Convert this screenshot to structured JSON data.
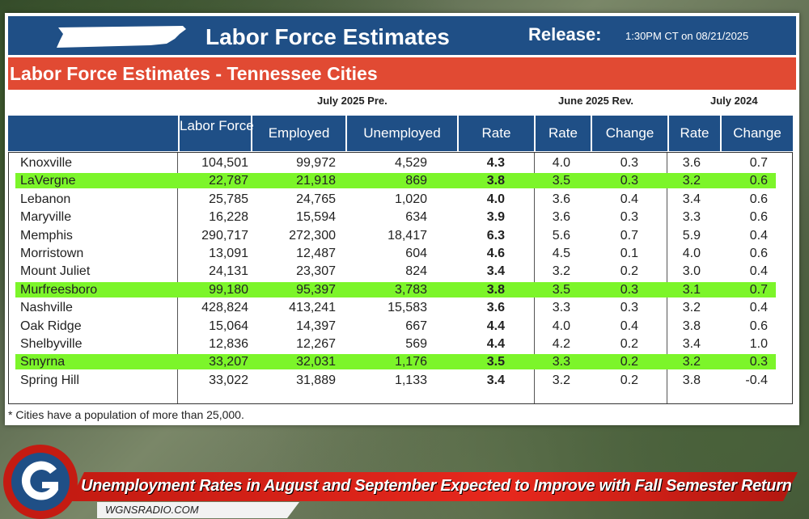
{
  "header": {
    "title": "Labor Force Estimates",
    "release_label": "Release:",
    "release_time": "1:30PM CT on  08/21/2025"
  },
  "subheader": {
    "title": "Labor Force Estimates - Tennessee Cities"
  },
  "groups": {
    "july2025": "July 2025 Pre.",
    "june2025": "June 2025 Rev.",
    "july2024": "July 2024"
  },
  "columns": [
    "Labor Force",
    "Employed",
    "Unemployed",
    "Rate",
    "Rate",
    "Change",
    "Rate",
    "Change"
  ],
  "rows": [
    {
      "city": "Knoxville",
      "labor": "104,501",
      "employed": "99,972",
      "unemployed": "4,529",
      "rate": "4.3",
      "jun_rate": "4.0",
      "jun_change": "0.3",
      "y24_rate": "3.6",
      "y24_change": "0.7",
      "highlight": false
    },
    {
      "city": "LaVergne",
      "labor": "22,787",
      "employed": "21,918",
      "unemployed": "869",
      "rate": "3.8",
      "jun_rate": "3.5",
      "jun_change": "0.3",
      "y24_rate": "3.2",
      "y24_change": "0.6",
      "highlight": true
    },
    {
      "city": "Lebanon",
      "labor": "25,785",
      "employed": "24,765",
      "unemployed": "1,020",
      "rate": "4.0",
      "jun_rate": "3.6",
      "jun_change": "0.4",
      "y24_rate": "3.4",
      "y24_change": "0.6",
      "highlight": false
    },
    {
      "city": "Maryville",
      "labor": "16,228",
      "employed": "15,594",
      "unemployed": "634",
      "rate": "3.9",
      "jun_rate": "3.6",
      "jun_change": "0.3",
      "y24_rate": "3.3",
      "y24_change": "0.6",
      "highlight": false
    },
    {
      "city": "Memphis",
      "labor": "290,717",
      "employed": "272,300",
      "unemployed": "18,417",
      "rate": "6.3",
      "jun_rate": "5.6",
      "jun_change": "0.7",
      "y24_rate": "5.9",
      "y24_change": "0.4",
      "highlight": false
    },
    {
      "city": "Morristown",
      "labor": "13,091",
      "employed": "12,487",
      "unemployed": "604",
      "rate": "4.6",
      "jun_rate": "4.5",
      "jun_change": "0.1",
      "y24_rate": "4.0",
      "y24_change": "0.6",
      "highlight": false
    },
    {
      "city": "Mount Juliet",
      "labor": "24,131",
      "employed": "23,307",
      "unemployed": "824",
      "rate": "3.4",
      "jun_rate": "3.2",
      "jun_change": "0.2",
      "y24_rate": "3.0",
      "y24_change": "0.4",
      "highlight": false
    },
    {
      "city": "Murfreesboro",
      "labor": "99,180",
      "employed": "95,397",
      "unemployed": "3,783",
      "rate": "3.8",
      "jun_rate": "3.5",
      "jun_change": "0.3",
      "y24_rate": "3.1",
      "y24_change": "0.7",
      "highlight": true
    },
    {
      "city": "Nashville",
      "labor": "428,824",
      "employed": "413,241",
      "unemployed": "15,583",
      "rate": "3.6",
      "jun_rate": "3.3",
      "jun_change": "0.3",
      "y24_rate": "3.2",
      "y24_change": "0.4",
      "highlight": false
    },
    {
      "city": "Oak Ridge",
      "labor": "15,064",
      "employed": "14,397",
      "unemployed": "667",
      "rate": "4.4",
      "jun_rate": "4.0",
      "jun_change": "0.4",
      "y24_rate": "3.8",
      "y24_change": "0.6",
      "highlight": false
    },
    {
      "city": "Shelbyville",
      "labor": "12,836",
      "employed": "12,267",
      "unemployed": "569",
      "rate": "4.4",
      "jun_rate": "4.2",
      "jun_change": "0.2",
      "y24_rate": "3.4",
      "y24_change": "1.0",
      "highlight": false
    },
    {
      "city": "Smyrna",
      "labor": "33,207",
      "employed": "32,031",
      "unemployed": "1,176",
      "rate": "3.5",
      "jun_rate": "3.3",
      "jun_change": "0.2",
      "y24_rate": "3.2",
      "y24_change": "0.3",
      "highlight": true
    },
    {
      "city": "Spring Hill",
      "labor": "33,022",
      "employed": "31,889",
      "unemployed": "1,133",
      "rate": "3.4",
      "jun_rate": "3.2",
      "jun_change": "0.2",
      "y24_rate": "3.8",
      "y24_change": "-0.4",
      "highlight": false
    }
  ],
  "footnote": "* Cities have a population of more than 25,000.",
  "banner": {
    "headline": "Unemployment Rates in August and September Expected to Improve with Fall Semester Return",
    "site": "WGNSRADIO.COM"
  },
  "colors": {
    "header_blue": "#1f4f86",
    "subheader_red": "#e14a33",
    "highlight_green": "#7cf52a",
    "banner_red": "#e6281d"
  },
  "icons": [
    "tennessee-state-shape-icon",
    "wgns-g-logo-icon"
  ]
}
